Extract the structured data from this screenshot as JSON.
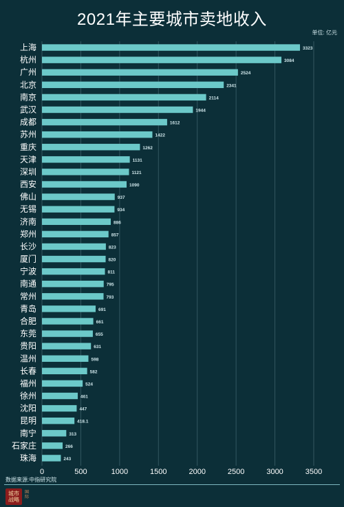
{
  "title": "2021年主要城市卖地收入",
  "unit_label": "单位: 亿元",
  "source": "数据来源:中指研究院",
  "logo": {
    "text": "城市 战略",
    "small_text": "国际"
  },
  "colors": {
    "background": "#0c2f38",
    "bar": "#6cc9c9",
    "grid": "#335760",
    "text": "#ffffff",
    "label": "#cfe6ea"
  },
  "chart_data": {
    "type": "bar",
    "orientation": "horizontal",
    "title": "2021年主要城市卖地收入",
    "unit": "单位: 亿元",
    "categories": [
      "上海",
      "杭州",
      "广州",
      "北京",
      "南京",
      "武汉",
      "成都",
      "苏州",
      "重庆",
      "天津",
      "深圳",
      "西安",
      "佛山",
      "无锡",
      "济南",
      "郑州",
      "长沙",
      "厦门",
      "宁波",
      "南通",
      "常州",
      "青岛",
      "合肥",
      "东莞",
      "贵阳",
      "温州",
      "长春",
      "福州",
      "徐州",
      "沈阳",
      "昆明",
      "南宁",
      "石家庄",
      "珠海"
    ],
    "values": [
      3323,
      3084,
      2524,
      2341,
      2114,
      1944,
      1612,
      1422,
      1262,
      1131,
      1121,
      1090,
      937,
      934,
      886,
      857,
      823,
      820,
      811,
      795,
      793,
      691,
      661,
      655,
      631,
      598,
      582,
      524,
      461,
      447,
      418.1,
      313,
      266,
      243
    ],
    "value_labels": [
      "3323",
      "3084",
      "2524",
      "2341",
      "2114",
      "1944",
      "1612",
      "1422",
      "1262",
      "1131",
      "1121",
      "1090",
      "937",
      "934",
      "886",
      "857",
      "823",
      "820",
      "811",
      "795",
      "793",
      "691",
      "661",
      "655",
      "631",
      "598",
      "582",
      "524",
      "461",
      "447",
      "418.1",
      "313",
      "266",
      "243"
    ],
    "xlim": [
      0,
      3500
    ],
    "xticks": [
      0,
      500,
      1000,
      1500,
      2000,
      2500,
      3000,
      3500
    ],
    "grid": true
  }
}
